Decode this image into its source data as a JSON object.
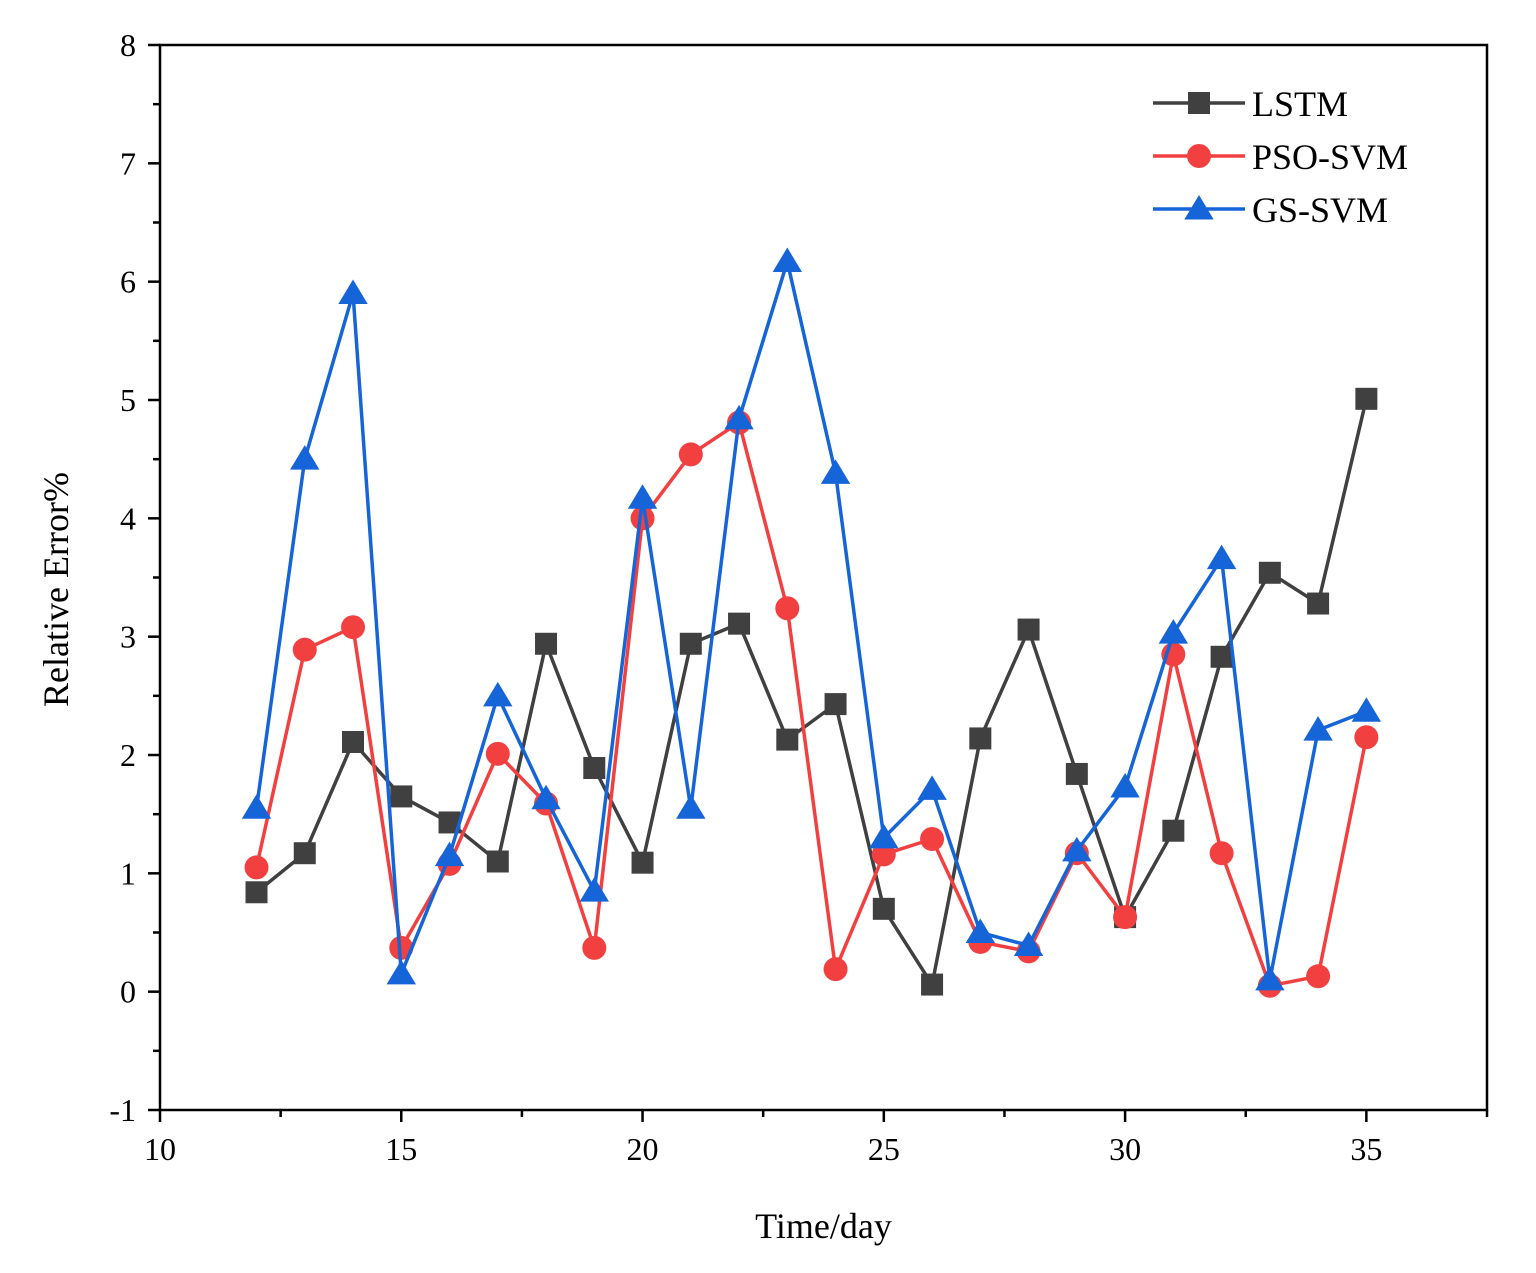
{
  "chart_data": {
    "type": "line",
    "title": "",
    "xlabel": "Time/day",
    "ylabel": "Relative Error%",
    "xlim": [
      10,
      37.5
    ],
    "ylim": [
      -1,
      8
    ],
    "xticks": [
      10,
      15,
      20,
      25,
      30,
      35
    ],
    "xticks_minor": [
      12.5,
      17.5,
      22.5,
      27.5,
      32.5,
      37.5
    ],
    "yticks": [
      -1,
      0,
      1,
      2,
      3,
      4,
      5,
      6,
      7,
      8
    ],
    "grid": false,
    "legend_position": "top-right",
    "x": [
      12,
      13,
      14,
      15,
      16,
      17,
      18,
      19,
      20,
      21,
      22,
      23,
      24,
      25,
      26,
      27,
      28,
      29,
      30,
      31,
      32,
      33,
      34,
      35
    ],
    "series": [
      {
        "name": "LSTM",
        "color": "#404040",
        "marker": "square",
        "values": [
          0.84,
          1.17,
          2.11,
          1.65,
          1.43,
          1.1,
          2.94,
          1.89,
          1.09,
          2.94,
          3.11,
          2.13,
          2.43,
          0.7,
          0.06,
          2.14,
          3.06,
          1.84,
          0.63,
          1.36,
          2.83,
          3.54,
          3.28,
          5.01
        ]
      },
      {
        "name": "PSO-SVM",
        "color": "#f24040",
        "marker": "circle",
        "values": [
          1.05,
          2.89,
          3.08,
          0.37,
          1.08,
          2.01,
          1.59,
          0.37,
          4.0,
          4.54,
          4.81,
          3.24,
          0.19,
          1.16,
          1.29,
          0.42,
          0.34,
          1.17,
          0.63,
          2.85,
          1.17,
          0.05,
          0.13,
          2.15
        ]
      },
      {
        "name": "GS-SVM",
        "color": "#1565d8",
        "marker": "triangle",
        "values": [
          1.55,
          4.5,
          5.9,
          0.15,
          1.15,
          2.5,
          1.63,
          0.85,
          4.17,
          1.55,
          4.84,
          6.17,
          4.38,
          1.3,
          1.71,
          0.5,
          0.39,
          1.19,
          1.73,
          3.03,
          3.66,
          0.1,
          2.21,
          2.37
        ]
      }
    ]
  }
}
